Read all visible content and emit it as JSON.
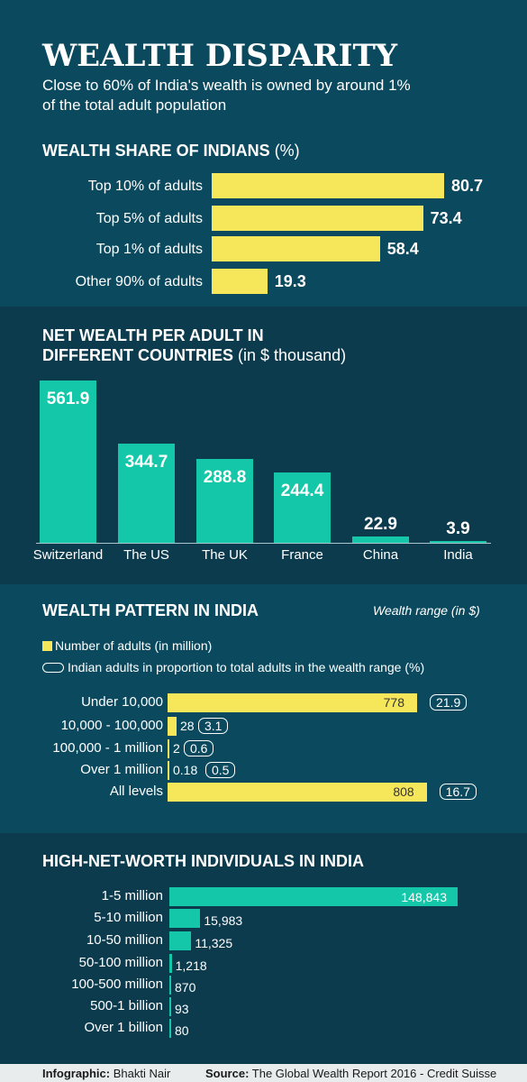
{
  "title": "WEALTH DISPARITY",
  "subtitle": "Close to 60% of India's wealth is owned by around 1% of the total adult population",
  "colors": {
    "yellow": "#f6e75a",
    "teal": "#14c7a8",
    "bg_light": "#0b4a5e",
    "bg_dark": "#0c3b4e"
  },
  "chart_data": [
    {
      "type": "bar",
      "orientation": "horizontal",
      "title": "WEALTH SHARE OF INDIANS",
      "unit": "(%)",
      "categories": [
        "Top 10% of adults",
        "Top 5% of adults",
        "Top 1% of adults",
        "Other 90% of adults"
      ],
      "values": [
        80.7,
        73.4,
        58.4,
        19.3
      ],
      "value_labels": [
        "80.7",
        "73.4",
        "58.4",
        "19.3"
      ]
    },
    {
      "type": "bar",
      "title_line1": "NET WEALTH PER ADULT IN",
      "title_line2": "DIFFERENT COUNTRIES",
      "unit": "(in $ thousand)",
      "categories": [
        "Switzerland",
        "The US",
        "The UK",
        "France",
        "China",
        "India"
      ],
      "values": [
        561.9,
        344.7,
        288.8,
        244.4,
        22.9,
        3.9
      ],
      "value_labels": [
        "561.9",
        "344.7",
        "288.8",
        "244.4",
        "22.9",
        "3.9"
      ]
    },
    {
      "type": "bar",
      "orientation": "horizontal",
      "title": "WEALTH PATTERN IN INDIA",
      "axis_note": "Wealth range (in $)",
      "legend": [
        "Number of adults (in million)",
        "Indian adults in proportion to total adults in the wealth range (%)"
      ],
      "categories": [
        "Under 10,000",
        "10,000 - 100,000",
        "100,000 - 1 million",
        "Over 1 million",
        "All levels"
      ],
      "values": [
        778,
        28,
        2,
        0.18,
        808
      ],
      "value_labels": [
        "778",
        "28",
        "2",
        "0.18",
        "808"
      ],
      "proportions": [
        "21.9",
        "3.1",
        "0.6",
        "0.5",
        "16.7"
      ]
    },
    {
      "type": "bar",
      "orientation": "horizontal",
      "title": "HIGH-NET-WORTH INDIVIDUALS IN INDIA",
      "categories": [
        "1-5 million",
        "5-10 million",
        "10-50 million",
        "50-100 million",
        "100-500 million",
        "500-1 billion",
        "Over 1 billion"
      ],
      "values": [
        148843,
        15983,
        11325,
        1218,
        870,
        93,
        80
      ],
      "value_labels": [
        "148,843",
        "15,983",
        "11,325",
        "1,218",
        "870",
        "93",
        "80"
      ]
    }
  ],
  "footer": {
    "infographic_label": "Infographic:",
    "infographic_name": "Bhakti Nair",
    "source_label": "Source:",
    "source_text": "The Global Wealth Report 2016 - Credit  Suisse"
  }
}
